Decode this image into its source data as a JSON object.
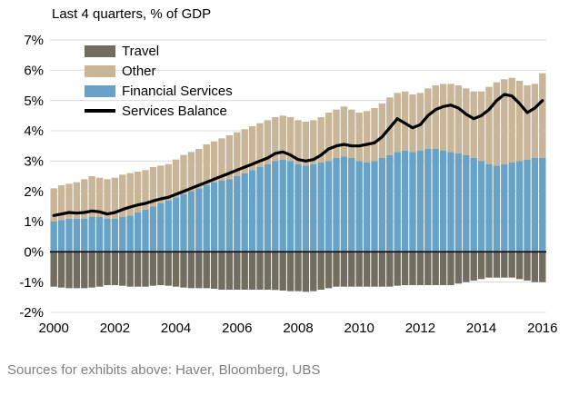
{
  "title": "Last 4 quarters, % of GDP",
  "source_note": "Sources for exhibits above: Haver, Bloomberg, UBS",
  "colors": {
    "travel": "#716E5F",
    "other": "#C9B699",
    "financial_services": "#68A2C6",
    "balance_line": "#000000",
    "gridline": "#D9D9D9",
    "zero_line": "#000000",
    "axis_text": "#000000",
    "source_text": "#808080",
    "background": "#FFFFFF"
  },
  "chart_data": {
    "type": "area",
    "stacked": true,
    "title": "Last 4 quarters, % of GDP",
    "xlabel": "",
    "ylabel": "% of GDP",
    "ylim": [
      -2,
      7
    ],
    "grid": true,
    "legend_position": "top-left-inside",
    "x_start": 2000,
    "x_step": 0.25,
    "y_ticks": [
      {
        "label": "7%",
        "value": 7
      },
      {
        "label": "6%",
        "value": 6
      },
      {
        "label": "5%",
        "value": 5
      },
      {
        "label": "4%",
        "value": 4
      },
      {
        "label": "3%",
        "value": 3
      },
      {
        "label": "2%",
        "value": 2
      },
      {
        "label": "1%",
        "value": 1
      },
      {
        "label": "0%",
        "value": 0
      },
      {
        "label": "-1%",
        "value": -1
      },
      {
        "label": "-2%",
        "value": -2
      }
    ],
    "x_ticks": [
      {
        "label": "2000",
        "value": 2000
      },
      {
        "label": "2002",
        "value": 2002
      },
      {
        "label": "2004",
        "value": 2004
      },
      {
        "label": "2006",
        "value": 2006
      },
      {
        "label": "2008",
        "value": 2008
      },
      {
        "label": "2010",
        "value": 2010
      },
      {
        "label": "2012",
        "value": 2012
      },
      {
        "label": "2014",
        "value": 2014
      },
      {
        "label": "2016",
        "value": 2016
      }
    ],
    "legend": [
      {
        "label": "Travel",
        "color": "#716E5F",
        "marker": "patch"
      },
      {
        "label": "Other",
        "color": "#C9B699",
        "marker": "patch"
      },
      {
        "label": "Financial Services",
        "color": "#68A2C6",
        "marker": "patch"
      },
      {
        "label": "Services Balance",
        "color": "#000000",
        "marker": "line"
      }
    ],
    "series": [
      {
        "name": "Travel",
        "type": "bar",
        "color": "#716E5F",
        "values": [
          -1.15,
          -1.18,
          -1.2,
          -1.2,
          -1.2,
          -1.18,
          -1.15,
          -1.1,
          -1.1,
          -1.12,
          -1.15,
          -1.15,
          -1.15,
          -1.12,
          -1.1,
          -1.12,
          -1.15,
          -1.18,
          -1.2,
          -1.2,
          -1.2,
          -1.22,
          -1.25,
          -1.25,
          -1.25,
          -1.25,
          -1.25,
          -1.25,
          -1.25,
          -1.26,
          -1.28,
          -1.3,
          -1.3,
          -1.32,
          -1.3,
          -1.25,
          -1.2,
          -1.15,
          -1.15,
          -1.15,
          -1.15,
          -1.15,
          -1.15,
          -1.15,
          -1.15,
          -1.12,
          -1.1,
          -1.1,
          -1.1,
          -1.1,
          -1.1,
          -1.1,
          -1.1,
          -1.05,
          -1.0,
          -0.95,
          -0.9,
          -0.85,
          -0.85,
          -0.85,
          -0.85,
          -0.9,
          -0.95,
          -1.0,
          -1.0
        ]
      },
      {
        "name": "Financial Services",
        "type": "bar",
        "color": "#68A2C6",
        "values": [
          1.0,
          1.05,
          1.1,
          1.1,
          1.1,
          1.15,
          1.15,
          1.1,
          1.1,
          1.15,
          1.2,
          1.3,
          1.4,
          1.5,
          1.6,
          1.7,
          1.8,
          1.9,
          2.0,
          2.1,
          2.2,
          2.3,
          2.35,
          2.4,
          2.5,
          2.6,
          2.7,
          2.8,
          2.9,
          3.0,
          3.05,
          3.0,
          2.9,
          2.85,
          2.9,
          2.95,
          3.0,
          3.1,
          3.15,
          3.1,
          3.0,
          2.95,
          3.0,
          3.1,
          3.2,
          3.3,
          3.35,
          3.3,
          3.35,
          3.4,
          3.4,
          3.35,
          3.3,
          3.25,
          3.2,
          3.1,
          3.0,
          2.9,
          2.85,
          2.9,
          2.95,
          3.0,
          3.05,
          3.1,
          3.1
        ]
      },
      {
        "name": "Other",
        "type": "bar",
        "color": "#C9B699",
        "values": [
          1.1,
          1.15,
          1.15,
          1.2,
          1.3,
          1.35,
          1.3,
          1.3,
          1.35,
          1.4,
          1.4,
          1.35,
          1.3,
          1.3,
          1.25,
          1.2,
          1.25,
          1.3,
          1.3,
          1.3,
          1.35,
          1.35,
          1.4,
          1.45,
          1.45,
          1.45,
          1.45,
          1.45,
          1.45,
          1.45,
          1.45,
          1.45,
          1.45,
          1.45,
          1.45,
          1.5,
          1.6,
          1.6,
          1.65,
          1.6,
          1.6,
          1.7,
          1.75,
          1.8,
          1.9,
          1.95,
          1.95,
          1.9,
          1.9,
          2.0,
          2.1,
          2.2,
          2.25,
          2.25,
          2.2,
          2.2,
          2.3,
          2.55,
          2.75,
          2.8,
          2.8,
          2.65,
          2.45,
          2.45,
          2.8
        ]
      },
      {
        "name": "Services Balance",
        "type": "line",
        "color": "#000000",
        "values": [
          1.2,
          1.25,
          1.3,
          1.28,
          1.3,
          1.35,
          1.32,
          1.25,
          1.3,
          1.4,
          1.48,
          1.55,
          1.6,
          1.68,
          1.75,
          1.8,
          1.9,
          2.0,
          2.1,
          2.2,
          2.3,
          2.4,
          2.5,
          2.6,
          2.7,
          2.8,
          2.9,
          3.0,
          3.1,
          3.25,
          3.3,
          3.2,
          3.05,
          3.0,
          3.05,
          3.2,
          3.4,
          3.5,
          3.55,
          3.5,
          3.5,
          3.55,
          3.6,
          3.8,
          4.1,
          4.4,
          4.25,
          4.1,
          4.2,
          4.5,
          4.7,
          4.8,
          4.85,
          4.75,
          4.55,
          4.4,
          4.5,
          4.7,
          5.0,
          5.2,
          5.15,
          4.9,
          4.6,
          4.75,
          5.0
        ]
      }
    ]
  }
}
